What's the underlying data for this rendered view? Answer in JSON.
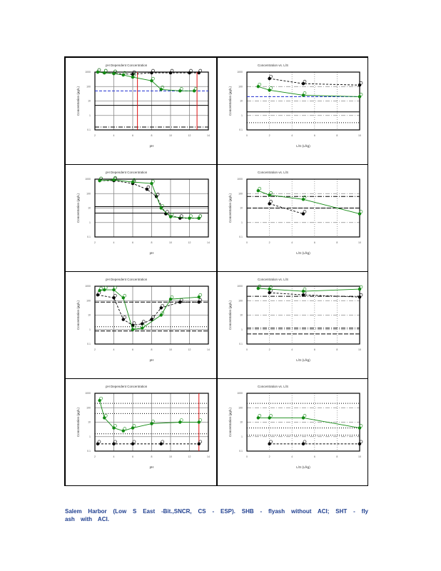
{
  "caption": "Salem Harbor (Low S East -Bit.,SNCR, CS - ESP). SHB - flyash without ACI; SHT - fly ash with ACI.",
  "colors": {
    "green": "#138a13",
    "black": "#000000",
    "blue": "#1f2fd0",
    "red": "#e01010"
  },
  "chart_data": [
    {
      "type": "line",
      "title": "pH Dependent Concentration",
      "xlabel": "pH",
      "ylabel": "Concentration (µg/L)",
      "xlim": [
        2,
        14
      ],
      "ylim": [
        -1,
        3
      ],
      "refs": [
        {
          "y": 1.7,
          "c": "blue",
          "d": "4,2"
        },
        {
          "y": 0.7,
          "c": "black",
          "d": ""
        },
        {
          "y": -0.8,
          "c": "black",
          "d": "6,2,1,2"
        }
      ],
      "vlines": [
        6.5,
        12.8
      ],
      "series": [
        {
          "name": "SHT",
          "color": "green",
          "dash": "",
          "values": [
            [
              2.3,
              3
            ],
            [
              3,
              2.95
            ],
            [
              4,
              2.9
            ],
            [
              5,
              2.8
            ],
            [
              6,
              2.65
            ],
            [
              8,
              2.4
            ],
            [
              9,
              1.8
            ],
            [
              11,
              1.7
            ],
            [
              12.5,
              1.7
            ]
          ]
        },
        {
          "name": "SHB",
          "color": "black",
          "dash": "3,2",
          "values": [
            [
              2.3,
              3
            ],
            [
              3,
              2.95
            ],
            [
              4,
              2.9
            ],
            [
              6,
              2.85
            ],
            [
              8,
              2.95
            ],
            [
              10,
              2.95
            ],
            [
              12,
              2.95
            ],
            [
              13,
              2.95
            ]
          ]
        }
      ]
    },
    {
      "type": "line",
      "title": "Concentration vs. L/S",
      "xlabel": "L/S (L/kg)",
      "ylabel": "Concentration (µg/L)",
      "xlim": [
        0,
        10
      ],
      "ylim": [
        -1,
        3
      ],
      "refs": [
        {
          "y": 1.3,
          "c": "blue",
          "d": "4,2"
        },
        {
          "y": 0.25,
          "c": "black",
          "d": ""
        },
        {
          "y": -0.5,
          "c": "black",
          "d": "1,2"
        }
      ],
      "vlines": [],
      "series": [
        {
          "name": "SHT",
          "color": "green",
          "dash": "",
          "values": [
            [
              1,
              2.0
            ],
            [
              2,
              1.75
            ],
            [
              5,
              1.4
            ],
            [
              10,
              1.3
            ]
          ]
        },
        {
          "name": "SHB",
          "color": "black",
          "dash": "3,2",
          "values": [
            [
              2,
              2.55
            ],
            [
              5,
              2.2
            ],
            [
              10,
              2.1
            ]
          ]
        }
      ]
    },
    {
      "type": "line",
      "title": "pH Dependent Concentration",
      "xlabel": "pH",
      "ylabel": "Concentration (µg/L)",
      "xlim": [
        2,
        14
      ],
      "ylim": [
        -1,
        3
      ],
      "refs": [
        {
          "y": 1.1,
          "c": "black",
          "d": ""
        },
        {
          "y": 0.65,
          "c": "black",
          "d": ""
        }
      ],
      "vlines": [],
      "series": [
        {
          "name": "SHT",
          "color": "green",
          "dash": "",
          "values": [
            [
              2.5,
              2.9
            ],
            [
              4,
              2.95
            ],
            [
              6,
              2.8
            ],
            [
              8,
              2.7
            ],
            [
              9,
              1.0
            ],
            [
              10,
              0.4
            ],
            [
              12,
              0.3
            ],
            [
              13,
              0.3
            ]
          ]
        },
        {
          "name": "SHB",
          "color": "black",
          "dash": "3,2",
          "values": [
            [
              2.5,
              2.9
            ],
            [
              4,
              2.9
            ],
            [
              6,
              2.7
            ],
            [
              7.5,
              2.3
            ],
            [
              8.5,
              1.8
            ],
            [
              9.5,
              0.6
            ],
            [
              11,
              0.3
            ],
            [
              13,
              0.3
            ]
          ]
        }
      ]
    },
    {
      "type": "line",
      "title": "Concentration vs. L/S",
      "xlabel": "L/S (L/kg)",
      "ylabel": "Concentration (µg/L)",
      "xlim": [
        0,
        10
      ],
      "ylim": [
        -1,
        3
      ],
      "refs": [
        {
          "y": 1.8,
          "c": "black",
          "d": "6,2,1,2"
        },
        {
          "y": 1.0,
          "c": "black",
          "d": "6,2"
        }
      ],
      "vlines": [],
      "series": [
        {
          "name": "SHT",
          "color": "green",
          "dash": "",
          "values": [
            [
              1,
              2.2
            ],
            [
              2,
              1.9
            ],
            [
              5,
              1.6
            ],
            [
              10,
              0.6
            ]
          ]
        },
        {
          "name": "SHB",
          "color": "black",
          "dash": "3,2",
          "values": [
            [
              2,
              1.3
            ],
            [
              5,
              0.6
            ]
          ]
        }
      ]
    },
    {
      "type": "line",
      "title": "pH Dependent Concentration",
      "xlabel": "pH",
      "ylabel": "Concentration (µg/L)",
      "xlim": [
        2,
        14
      ],
      "ylim": [
        -1,
        3
      ],
      "refs": [
        {
          "y": 1.9,
          "c": "black",
          "d": "6,2"
        },
        {
          "y": 0.2,
          "c": "black",
          "d": "1,2"
        },
        {
          "y": -0.1,
          "c": "black",
          "d": "6,2"
        }
      ],
      "vlines": [],
      "series": [
        {
          "name": "SHT",
          "color": "green",
          "dash": "",
          "values": [
            [
              2.5,
              2.7
            ],
            [
              3,
              2.75
            ],
            [
              4,
              2.75
            ],
            [
              5,
              2.2
            ],
            [
              6,
              0.0
            ],
            [
              7,
              0.1
            ],
            [
              9,
              1.0
            ],
            [
              10,
              2.1
            ],
            [
              13,
              2.25
            ]
          ]
        },
        {
          "name": "SHB",
          "color": "black",
          "dash": "3,2",
          "values": [
            [
              2.3,
              2.4
            ],
            [
              4,
              2.2
            ],
            [
              5,
              0.7
            ],
            [
              6,
              0.3
            ],
            [
              7,
              0.4
            ],
            [
              8,
              0.7
            ],
            [
              9,
              1.5
            ],
            [
              11,
              1.9
            ],
            [
              13,
              1.9
            ]
          ]
        }
      ]
    },
    {
      "type": "line",
      "title": "Concentration vs. L/S",
      "xlabel": "L/S (L/kg)",
      "ylabel": "Concentration (µg/L)",
      "xlim": [
        0,
        10
      ],
      "ylim": [
        -1,
        3
      ],
      "refs": [
        {
          "y": 2.3,
          "c": "black",
          "d": "6,2,1,2"
        },
        {
          "y": 0.1,
          "c": "black",
          "d": "6,2,1,2"
        },
        {
          "y": -0.3,
          "c": "black",
          "d": "6,2"
        }
      ],
      "vlines": [],
      "series": [
        {
          "name": "SHT",
          "color": "green",
          "dash": "",
          "values": [
            [
              1,
              2.85
            ],
            [
              2,
              2.8
            ],
            [
              5,
              2.65
            ],
            [
              10,
              2.8
            ]
          ]
        },
        {
          "name": "SHB",
          "color": "black",
          "dash": "3,2",
          "values": [
            [
              2,
              2.55
            ],
            [
              5,
              2.4
            ],
            [
              10,
              2.25
            ]
          ]
        }
      ]
    },
    {
      "type": "line",
      "title": "pH Dependent Concentration",
      "xlabel": "pH",
      "ylabel": "Concentration (µg/L)",
      "xlim": [
        2,
        14
      ],
      "ylim": [
        -1,
        3
      ],
      "refs": [
        {
          "y": 2.3,
          "c": "black",
          "d": "1,2"
        },
        {
          "y": 1.6,
          "c": "black",
          "d": "1,2"
        },
        {
          "y": 0.2,
          "c": "black",
          "d": "1,2"
        }
      ],
      "vlines": [
        13
      ],
      "series": [
        {
          "name": "SHT",
          "color": "green",
          "dash": "",
          "values": [
            [
              2.5,
              2.5
            ],
            [
              3,
              1.3
            ],
            [
              4,
              0.6
            ],
            [
              5,
              0.4
            ],
            [
              6,
              0.6
            ],
            [
              8,
              0.9
            ],
            [
              11,
              1.0
            ],
            [
              13,
              1.0
            ]
          ]
        },
        {
          "name": "SHB",
          "color": "black",
          "dash": "3,2",
          "values": [
            [
              2.3,
              -0.5
            ],
            [
              4,
              -0.5
            ],
            [
              6,
              -0.5
            ],
            [
              9,
              -0.5
            ],
            [
              13,
              -0.5
            ]
          ]
        }
      ]
    },
    {
      "type": "line",
      "title": "Concentration vs. L/S",
      "xlabel": "L/S (L/kg)",
      "ylabel": "Concentration (µg/L)",
      "xlim": [
        0,
        10
      ],
      "ylim": [
        -1,
        3
      ],
      "refs": [
        {
          "y": 2.3,
          "c": "black",
          "d": "1,2"
        },
        {
          "y": 0.6,
          "c": "black",
          "d": "1,2"
        },
        {
          "y": 0.1,
          "c": "black",
          "d": "1,2"
        }
      ],
      "vlines": [],
      "series": [
        {
          "name": "SHT",
          "color": "green",
          "dash": "",
          "values": [
            [
              1,
              1.3
            ],
            [
              2,
              1.3
            ],
            [
              5,
              1.3
            ],
            [
              10,
              0.6
            ]
          ]
        },
        {
          "name": "SHB",
          "color": "black",
          "dash": "3,2",
          "values": [
            [
              2,
              -0.5
            ],
            [
              5,
              -0.5
            ],
            [
              10,
              -0.5
            ]
          ]
        }
      ]
    }
  ]
}
